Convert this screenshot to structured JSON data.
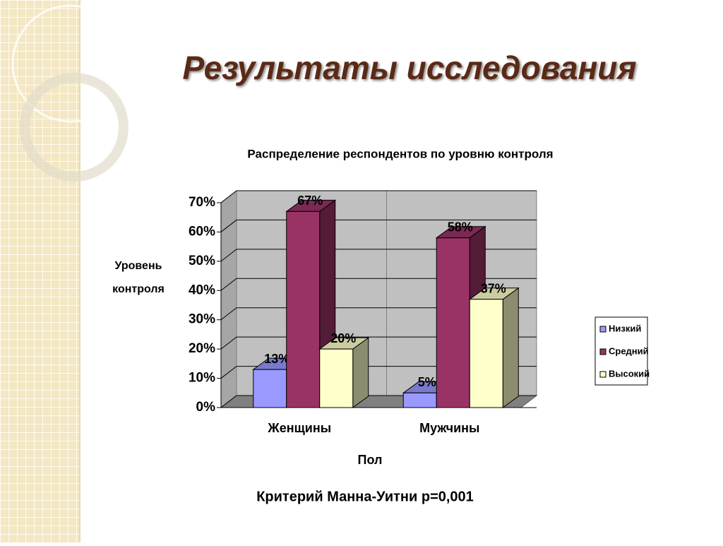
{
  "slide": {
    "title": "Результаты исследования",
    "note": "Критерий Манна-Уитни p=0,001"
  },
  "chart_data": {
    "type": "bar3d",
    "title": "Распределение респондентов по уровню контроля",
    "y_label": "Уровень контроля",
    "x_label": "Пол",
    "categories": [
      "Женщины",
      "Мужчины"
    ],
    "series": [
      {
        "name": "Низкий",
        "color": "#9999ff",
        "values": [
          13,
          5
        ],
        "value_labels": [
          "13%",
          "5%"
        ]
      },
      {
        "name": "Средний",
        "color": "#993366",
        "values": [
          67,
          58
        ],
        "value_labels": [
          "67%",
          "58%"
        ]
      },
      {
        "name": "Высокий",
        "color": "#ffffcc",
        "values": [
          20,
          37
        ],
        "value_labels": [
          "20%",
          "37%"
        ]
      }
    ],
    "ylim": [
      0,
      70
    ],
    "yticks": [
      {
        "value": 0,
        "label": "0%"
      },
      {
        "value": 10,
        "label": "10%"
      },
      {
        "value": 20,
        "label": "20%"
      },
      {
        "value": 30,
        "label": "30%"
      },
      {
        "value": 40,
        "label": "40%"
      },
      {
        "value": 50,
        "label": "50%"
      },
      {
        "value": 60,
        "label": "60%"
      },
      {
        "value": 70,
        "label": "70%"
      }
    ],
    "grid": true
  }
}
